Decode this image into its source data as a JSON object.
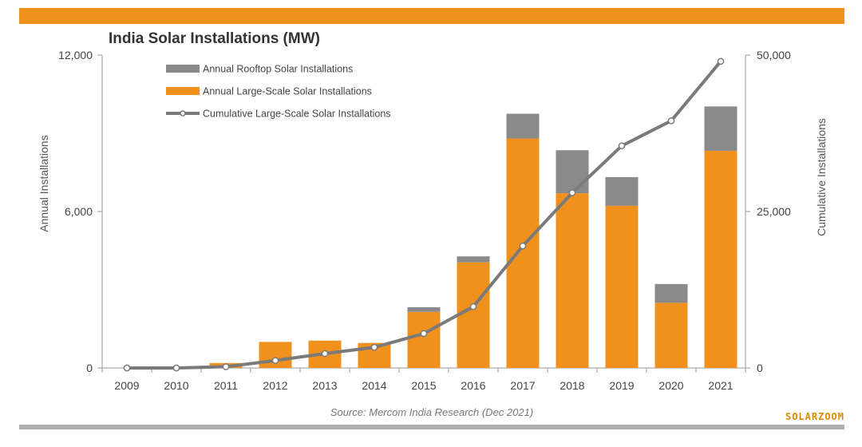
{
  "colors": {
    "accent": "#f0911e",
    "rooftop": "#8a8a8a",
    "line": "#7a7a7a",
    "band_bottom": "#b0b0b0",
    "watermark": "#e08a00"
  },
  "watermark": "SOLARZOOM",
  "chart_data": {
    "type": "bar",
    "title": "India Solar Installations (MW)",
    "source": "Source: Mercom India Research (Dec 2021)",
    "ylabel": "Annual Installations",
    "y2label": "Cumulative Installations",
    "ylim": [
      0,
      12000
    ],
    "y2lim": [
      0,
      50000
    ],
    "yticks": [
      "0",
      "6,000",
      "12,000"
    ],
    "yticks_values": [
      0,
      6000,
      12000
    ],
    "y2ticks": [
      "0",
      "25,000",
      "50,000"
    ],
    "y2ticks_values": [
      0,
      25000,
      50000
    ],
    "categories": [
      "2009",
      "2010",
      "2011",
      "2012",
      "2013",
      "2014",
      "2015",
      "2016",
      "2017",
      "2018",
      "2019",
      "2020",
      "2021"
    ],
    "legend_placement": "top-left",
    "series": [
      {
        "name": "Annual Rooftop Solar Installations",
        "kind": "bar-stacked",
        "values": [
          0,
          0,
          0,
          0,
          0,
          0,
          180,
          230,
          950,
          1650,
          1100,
          720,
          1700
        ]
      },
      {
        "name": "Annual Large-Scale Solar Installations",
        "kind": "bar-stacked",
        "values": [
          0,
          0,
          190,
          1000,
          1050,
          960,
          2150,
          4050,
          8800,
          6700,
          6220,
          2500,
          8330
        ]
      },
      {
        "name": "Cumulative Large-Scale Solar Installations",
        "kind": "line",
        "axis": "right",
        "values": [
          0,
          0,
          200,
          1200,
          2300,
          3300,
          5500,
          9800,
          19500,
          28000,
          35500,
          39500,
          49000
        ]
      }
    ],
    "legend_order": [
      0,
      1,
      2
    ]
  }
}
